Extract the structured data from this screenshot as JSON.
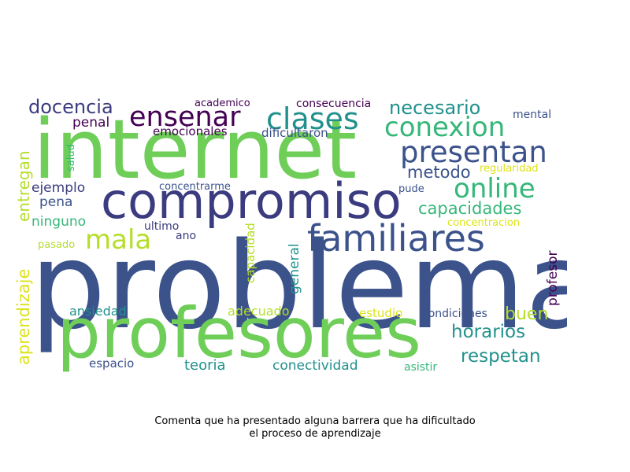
{
  "caption": {
    "line1": "Comenta que ha presentado alguna barrera que ha dificultado",
    "line2": "el proceso de aprendizaje"
  },
  "palette": {
    "dark_purple": "#440154",
    "indigo": "#3b3b7f",
    "navy_blue": "#3b528b",
    "teal": "#21918c",
    "mint": "#35b779",
    "green": "#6ece58",
    "yellow_green": "#b5de2b",
    "yellow": "#dde318"
  },
  "words": [
    {
      "text": "problemas",
      "color": "#3b528b"
    },
    {
      "text": "internet",
      "color": "#6ece58"
    },
    {
      "text": "profesores",
      "color": "#6ece58"
    },
    {
      "text": "compromiso",
      "color": "#3b3b7f"
    },
    {
      "text": "familiares",
      "color": "#3b528b"
    },
    {
      "text": "presentan",
      "color": "#3b528b"
    },
    {
      "text": "conexion",
      "color": "#35b779"
    },
    {
      "text": "online",
      "color": "#35b779"
    },
    {
      "text": "clases",
      "color": "#21918c"
    },
    {
      "text": "ensenar",
      "color": "#440154"
    },
    {
      "text": "mala",
      "color": "#b5de2b"
    },
    {
      "text": "docencia",
      "color": "#3b3b7f"
    },
    {
      "text": "necesario",
      "color": "#21918c"
    },
    {
      "text": "capacidades",
      "color": "#35b779"
    },
    {
      "text": "metodo",
      "color": "#3b528b"
    },
    {
      "text": "horarios",
      "color": "#21918c"
    },
    {
      "text": "respetan",
      "color": "#21918c"
    },
    {
      "text": "buen",
      "color": "#b5de2b"
    },
    {
      "text": "aprendizaje",
      "color": "#dde318"
    },
    {
      "text": "entregan",
      "color": "#b5de2b"
    },
    {
      "text": "ejemplo",
      "color": "#3b3b7f"
    },
    {
      "text": "pena",
      "color": "#3b528b"
    },
    {
      "text": "penal",
      "color": "#440154"
    },
    {
      "text": "ninguno",
      "color": "#35b779"
    },
    {
      "text": "emocionales",
      "color": "#440154"
    },
    {
      "text": "academico",
      "color": "#440154"
    },
    {
      "text": "consecuencia",
      "color": "#440154"
    },
    {
      "text": "dificultaron",
      "color": "#3b528b"
    },
    {
      "text": "mental",
      "color": "#3b528b"
    },
    {
      "text": "regularidad",
      "color": "#dde318"
    },
    {
      "text": "concentrarme",
      "color": "#3b528b"
    },
    {
      "text": "pude",
      "color": "#3b528b"
    },
    {
      "text": "salud",
      "color": "#35b779"
    },
    {
      "text": "ultimo",
      "color": "#3b3b7f"
    },
    {
      "text": "ano",
      "color": "#3b3b7f"
    },
    {
      "text": "pasado",
      "color": "#b5de2b"
    },
    {
      "text": "concentracion",
      "color": "#dde318"
    },
    {
      "text": "capacidad",
      "color": "#b5de2b"
    },
    {
      "text": "general",
      "color": "#21918c"
    },
    {
      "text": "profesor",
      "color": "#440154"
    },
    {
      "text": "ansiedad",
      "color": "#21918c"
    },
    {
      "text": "adecuado",
      "color": "#b5de2b"
    },
    {
      "text": "estudio",
      "color": "#dde318"
    },
    {
      "text": "condiciones",
      "color": "#3b528b"
    },
    {
      "text": "espacio",
      "color": "#3b528b"
    },
    {
      "text": "teoria",
      "color": "#21918c"
    },
    {
      "text": "conectividad",
      "color": "#21918c"
    },
    {
      "text": "asistir",
      "color": "#35b779"
    }
  ]
}
